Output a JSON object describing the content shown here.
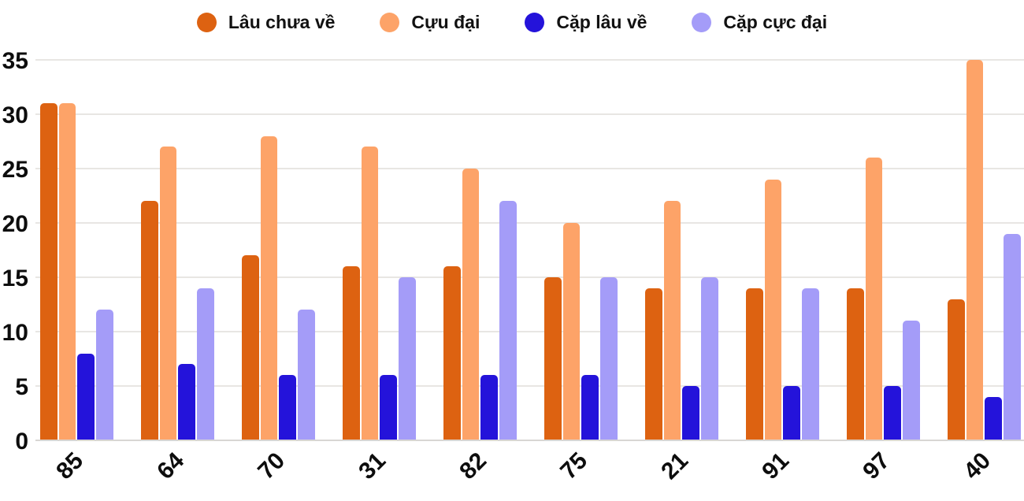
{
  "chart_data": {
    "type": "bar",
    "title": "",
    "xlabel": "",
    "ylabel": "",
    "categories": [
      "85",
      "64",
      "70",
      "31",
      "82",
      "75",
      "21",
      "91",
      "97",
      "40"
    ],
    "series": [
      {
        "name": "Lâu chưa về",
        "color": "#dd6211",
        "values": [
          31,
          22,
          17,
          16,
          16,
          15,
          14,
          14,
          14,
          13
        ]
      },
      {
        "name": "Cựu đại",
        "color": "#fda368",
        "values": [
          31,
          27,
          28,
          27,
          25,
          20,
          22,
          24,
          26,
          35
        ]
      },
      {
        "name": "Cặp lâu về",
        "color": "#2413da",
        "values": [
          8,
          7,
          6,
          6,
          6,
          6,
          5,
          5,
          5,
          4
        ]
      },
      {
        "name": "Cặp cực đại",
        "color": "#a49cf8",
        "values": [
          12,
          14,
          12,
          15,
          22,
          15,
          15,
          14,
          11,
          19
        ]
      }
    ],
    "ylim": [
      0,
      35
    ],
    "yticks": [
      0,
      5,
      10,
      15,
      20,
      25,
      30,
      35
    ],
    "grid": "horizontal",
    "legend_position": "top",
    "colors": {
      "gridline": "#e8e6e3",
      "axis_line": "#d8d6d3",
      "text": "#0d0d0d"
    }
  }
}
